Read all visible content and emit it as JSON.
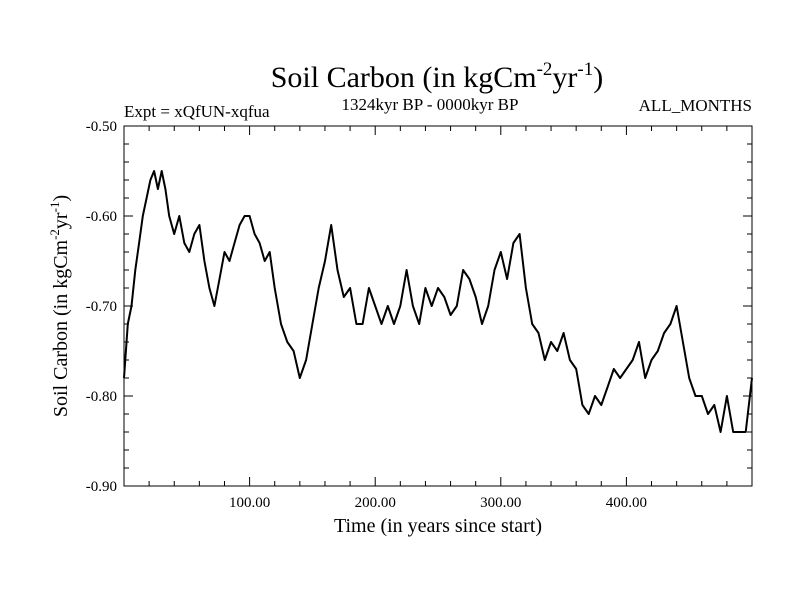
{
  "chart_data": {
    "type": "line",
    "title_main": "Soil Carbon (in kgCm",
    "title_sup1": "-2",
    "title_mid": "yr",
    "title_sup2": "-1",
    "title_end": ")",
    "expt_label": "Expt = xQfUN-xqfua",
    "period_label": "1324kyr BP - 0000kyr BP",
    "months_label": "ALL_MONTHS",
    "xlabel": "Time (in years since start)",
    "ylabel_main": "Soil Carbon (in kgCm",
    "ylabel_sup1": "-2",
    "ylabel_mid": "yr",
    "ylabel_sup2": "-1",
    "ylabel_end": ")",
    "xlim": [
      0,
      500
    ],
    "ylim": [
      -0.9,
      -0.5
    ],
    "xticks": [
      100,
      200,
      300,
      400
    ],
    "xtick_labels": [
      "100.00",
      "200.00",
      "300.00",
      "400.00"
    ],
    "yticks": [
      -0.9,
      -0.8,
      -0.7,
      -0.6,
      -0.5
    ],
    "ytick_labels": [
      "-0.90",
      "-0.80",
      "-0.70",
      "-0.60",
      "-0.50"
    ],
    "series": [
      {
        "name": "Soil Carbon",
        "color": "#000000",
        "x": [
          0,
          3,
          6,
          9,
          12,
          15,
          18,
          21,
          24,
          27,
          30,
          33,
          36,
          40,
          44,
          48,
          52,
          56,
          60,
          64,
          68,
          72,
          76,
          80,
          84,
          88,
          92,
          96,
          100,
          104,
          108,
          112,
          116,
          120,
          125,
          130,
          135,
          140,
          145,
          150,
          155,
          160,
          165,
          170,
          175,
          180,
          185,
          190,
          195,
          200,
          205,
          210,
          215,
          220,
          225,
          230,
          235,
          240,
          245,
          250,
          255,
          260,
          265,
          270,
          275,
          280,
          285,
          290,
          295,
          300,
          305,
          310,
          315,
          320,
          325,
          330,
          335,
          340,
          345,
          350,
          355,
          360,
          365,
          370,
          375,
          380,
          385,
          390,
          395,
          400,
          405,
          410,
          415,
          420,
          425,
          430,
          435,
          440,
          445,
          450,
          455,
          460,
          465,
          470,
          475,
          480,
          485,
          490,
          495,
          500
        ],
        "values": [
          -0.78,
          -0.72,
          -0.7,
          -0.66,
          -0.63,
          -0.6,
          -0.58,
          -0.56,
          -0.55,
          -0.57,
          -0.55,
          -0.57,
          -0.6,
          -0.62,
          -0.6,
          -0.63,
          -0.64,
          -0.62,
          -0.61,
          -0.65,
          -0.68,
          -0.7,
          -0.67,
          -0.64,
          -0.65,
          -0.63,
          -0.61,
          -0.6,
          -0.6,
          -0.62,
          -0.63,
          -0.65,
          -0.64,
          -0.68,
          -0.72,
          -0.74,
          -0.75,
          -0.78,
          -0.76,
          -0.72,
          -0.68,
          -0.65,
          -0.61,
          -0.66,
          -0.69,
          -0.68,
          -0.72,
          -0.72,
          -0.68,
          -0.7,
          -0.72,
          -0.7,
          -0.72,
          -0.7,
          -0.66,
          -0.7,
          -0.72,
          -0.68,
          -0.7,
          -0.68,
          -0.69,
          -0.71,
          -0.7,
          -0.66,
          -0.67,
          -0.69,
          -0.72,
          -0.7,
          -0.66,
          -0.64,
          -0.67,
          -0.63,
          -0.62,
          -0.68,
          -0.72,
          -0.73,
          -0.76,
          -0.74,
          -0.75,
          -0.73,
          -0.76,
          -0.77,
          -0.81,
          -0.82,
          -0.8,
          -0.81,
          -0.79,
          -0.77,
          -0.78,
          -0.77,
          -0.76,
          -0.74,
          -0.78,
          -0.76,
          -0.75,
          -0.73,
          -0.72,
          -0.7,
          -0.74,
          -0.78,
          -0.8,
          -0.8,
          -0.82,
          -0.81,
          -0.84,
          -0.8,
          -0.84,
          -0.84,
          -0.84,
          -0.78
        ]
      }
    ]
  }
}
